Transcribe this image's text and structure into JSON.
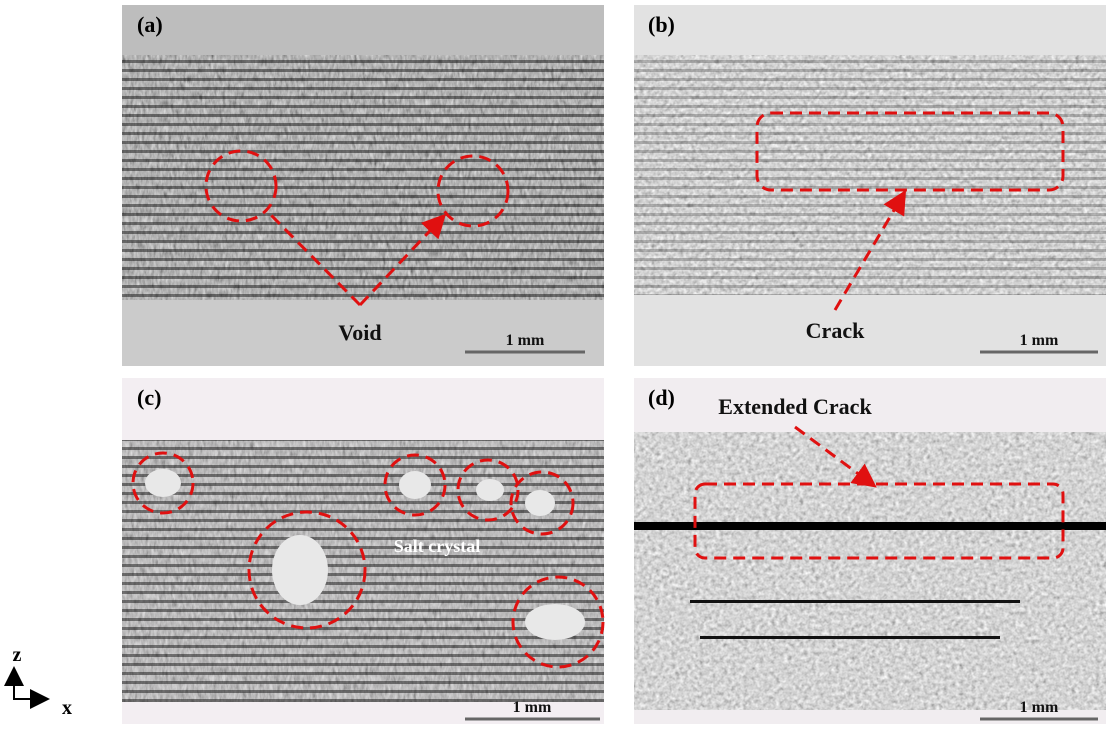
{
  "panels": [
    {
      "label": "(a)",
      "annotation": "Void",
      "scale_bar": "1 mm"
    },
    {
      "label": "(b)",
      "annotation": "Crack",
      "scale_bar": "1 mm"
    },
    {
      "label": "(c)",
      "annotation": "Salt crystal",
      "scale_bar": "1 mm"
    },
    {
      "label": "(d)",
      "annotation": "Extended Crack",
      "scale_bar": "1 mm"
    }
  ],
  "axes": {
    "vertical": "z",
    "horizontal": "x"
  }
}
